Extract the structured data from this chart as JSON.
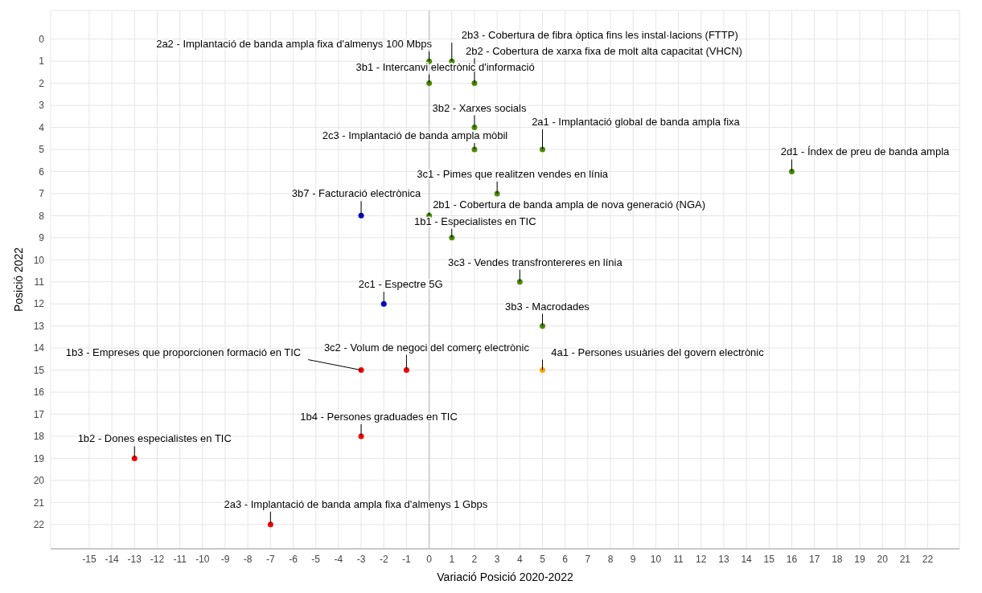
{
  "chart_data": {
    "type": "scatter",
    "xlabel": "Variació Posició 2020-2022",
    "ylabel": "Posició 2022",
    "x": [
      0,
      1,
      2,
      0,
      2,
      5,
      2,
      16,
      3,
      -3,
      0,
      1,
      4,
      -2,
      5,
      -3,
      -1,
      5,
      -3,
      -13,
      -7
    ],
    "values": [
      1,
      1,
      2,
      2,
      4,
      5,
      5,
      6,
      7,
      8,
      8,
      9,
      11,
      12,
      13,
      15,
      15,
      15,
      18,
      19,
      22
    ],
    "colors": [
      "#4c8c00",
      "#4c8c00",
      "#4c8c00",
      "#4c8c00",
      "#4c8c00",
      "#4c8c00",
      "#4c8c00",
      "#4c8c00",
      "#4c8c00",
      "#0000cc",
      "#4c8c00",
      "#4c8c00",
      "#4c8c00",
      "#0000cc",
      "#4c8c00",
      "#ff0000",
      "#ff0000",
      "#ffa500",
      "#ff0000",
      "#ff0000",
      "#ff0000"
    ],
    "annotations": [
      {
        "text": "2a2 - Implantació de banda ampla fixa d'almenys 100 Mbps",
        "x": 0,
        "y": 1
      },
      {
        "text": "2b3 - Cobertura de fibra òptica fins les instal·lacions (FTTP)",
        "x": 1,
        "y": 1
      },
      {
        "text": "2b2 - Cobertura de xarxa fixa de molt alta capacitat (VHCN)",
        "x": 2,
        "y": 2
      },
      {
        "text": "3b1 - Intercanvi electrònic d'informació",
        "x": 0,
        "y": 2
      },
      {
        "text": "3b2 - Xarxes socials",
        "x": 2,
        "y": 4
      },
      {
        "text": "2a1 - Implantació global de banda ampla fixa",
        "x": 5,
        "y": 5
      },
      {
        "text": "2c3 - Implantació de banda ampla mòbil",
        "x": 2,
        "y": 5
      },
      {
        "text": "2d1 - Índex de preu de banda ampla",
        "x": 16,
        "y": 6
      },
      {
        "text": "3c1 - Pimes que realitzen vendes en línia",
        "x": 3,
        "y": 7
      },
      {
        "text": "3b7 - Facturació electrònica",
        "x": -3,
        "y": 8
      },
      {
        "text": "2b1 - Cobertura de banda ampla de nova generació (NGA)",
        "x": 0,
        "y": 8
      },
      {
        "text": "1b1 - Especialistes en TIC",
        "x": 1,
        "y": 9
      },
      {
        "text": "3c3 - Vendes transfrontereres en línia",
        "x": 4,
        "y": 11
      },
      {
        "text": "2c1 - Espectre 5G",
        "x": -2,
        "y": 12
      },
      {
        "text": "3b3 - Macrodades",
        "x": 5,
        "y": 13
      },
      {
        "text": "1b3 - Empreses que proporcionen formació en TIC",
        "x": -3,
        "y": 15
      },
      {
        "text": "3c2 - Volum de negoci del comerç electrònic",
        "x": -1,
        "y": 15
      },
      {
        "text": "4a1 - Persones usuàries del govern electrònic",
        "x": 5,
        "y": 15
      },
      {
        "text": "1b4 - Persones graduades en TIC",
        "x": -3,
        "y": 18
      },
      {
        "text": "1b2 - Dones especialistes en TIC",
        "x": -13,
        "y": 19
      },
      {
        "text": "2a3 - Implantació de banda ampla fixa d'almenys 1 Gbps",
        "x": -7,
        "y": 22
      }
    ],
    "xlim": [
      -16.7,
      23.4
    ],
    "ylim": [
      23.1,
      -1.3
    ],
    "xticks": [
      -15,
      -14,
      -13,
      -12,
      -11,
      -10,
      -9,
      -8,
      -7,
      -6,
      -5,
      -4,
      -3,
      -2,
      -1,
      0,
      1,
      2,
      3,
      4,
      5,
      6,
      7,
      8,
      9,
      10,
      11,
      12,
      13,
      14,
      15,
      16,
      17,
      18,
      19,
      20,
      21,
      22
    ],
    "yticks": [
      0,
      1,
      2,
      3,
      4,
      5,
      6,
      7,
      8,
      9,
      10,
      11,
      12,
      13,
      14,
      15,
      16,
      17,
      18,
      19,
      20,
      21,
      22
    ],
    "ref_lines": [
      {
        "axis": "x",
        "value": 0,
        "color": "#d3d3d3"
      }
    ],
    "grid": true,
    "marker": "circle"
  }
}
